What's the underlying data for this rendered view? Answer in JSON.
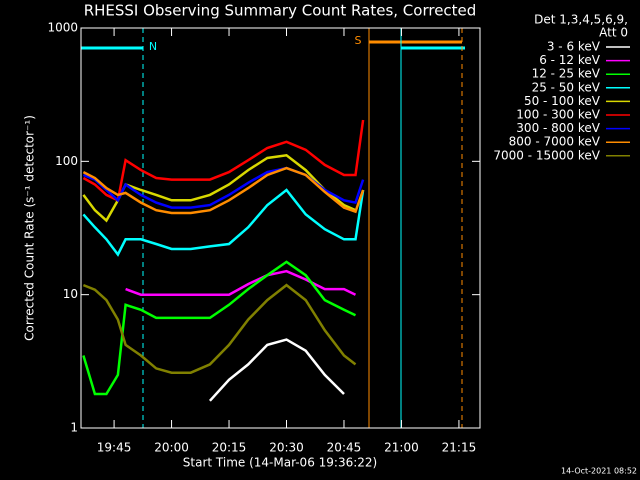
{
  "chart_data": {
    "type": "line",
    "title": "RHESSI Observing Summary Count Rates, Corrected",
    "x_label": "Start Time (14-Mar-06 19:36:22)",
    "y_label": "Corrected Count Rate (s⁻¹ detector⁻¹)",
    "footer": "14-Oct-2021 08:52",
    "legend_header": [
      "Det 1,3,4,5,6,9,",
      "Att 0"
    ],
    "annotations": [
      "N",
      "S"
    ],
    "y_scale": "log",
    "xlim": [
      "19:36:22",
      "21:20:30"
    ],
    "xticks": [
      "19:45",
      "20:00",
      "20:15",
      "20:30",
      "20:45",
      "21:00",
      "21:15"
    ],
    "ylim": [
      1,
      1000
    ],
    "yticks": [
      1,
      10,
      100,
      1000
    ],
    "x": [
      "19:37",
      "19:40",
      "19:43",
      "19:46",
      "19:48",
      "19:52",
      "19:56",
      "20:00",
      "20:05",
      "20:10",
      "20:15",
      "20:20",
      "20:25",
      "20:30",
      "20:35",
      "20:40",
      "20:45",
      "20:48",
      "20:50"
    ],
    "series": [
      {
        "name": "3 - 6 keV",
        "color": "#ffffff",
        "values": [
          null,
          null,
          null,
          null,
          null,
          null,
          null,
          null,
          null,
          1.6,
          2.3,
          3.0,
          4.2,
          4.6,
          3.8,
          2.5,
          1.8,
          null,
          null
        ]
      },
      {
        "name": "6 - 12 keV",
        "color": "#ff00ff",
        "values": [
          null,
          null,
          null,
          null,
          11,
          10,
          10,
          10,
          10,
          10,
          10,
          12,
          14,
          15,
          13,
          11,
          11,
          10,
          null
        ]
      },
      {
        "name": "12 - 25 keV",
        "color": "#00ff00",
        "values": [
          3.5,
          1.8,
          1.8,
          2.5,
          8.4,
          7.7,
          6.7,
          6.7,
          6.7,
          6.7,
          8.4,
          11,
          14,
          17.6,
          14,
          9.1,
          7.7,
          7,
          null
        ]
      },
      {
        "name": "25 - 50 keV",
        "color": "#00ffff",
        "values": [
          40,
          32,
          26,
          20,
          26,
          26,
          24,
          22,
          22,
          23,
          24,
          32,
          47,
          61,
          40,
          31,
          26,
          26,
          61
        ]
      },
      {
        "name": "50 - 100 keV",
        "color": "#d8d800",
        "values": [
          56,
          43,
          36,
          51,
          67,
          61,
          56,
          51,
          51,
          56,
          67,
          86,
          106,
          111,
          86,
          61,
          47,
          43,
          null
        ]
      },
      {
        "name": "100 - 300 keV",
        "color": "#ff0000",
        "values": [
          75,
          67,
          56,
          51,
          102,
          86,
          75,
          73,
          73,
          73,
          83,
          102,
          126,
          140,
          122,
          94,
          79,
          79,
          204
        ]
      },
      {
        "name": "300 - 800 keV",
        "color": "#0000ff",
        "values": [
          79,
          73,
          61,
          51,
          67,
          56,
          49,
          45,
          45,
          47,
          56,
          69,
          83,
          89,
          79,
          61,
          51,
          49,
          73
        ]
      },
      {
        "name": "800 - 7000 keV",
        "color": "#ff8c00",
        "values": [
          83,
          75,
          63,
          56,
          58,
          49,
          43,
          41,
          41,
          43,
          51,
          63,
          79,
          89,
          79,
          59,
          45,
          42,
          61
        ]
      },
      {
        "name": "7000 - 15000 keV",
        "color": "#808000",
        "values": [
          11.8,
          10.9,
          9.1,
          6.5,
          4.2,
          3.5,
          2.8,
          2.6,
          2.6,
          3.0,
          4.2,
          6.5,
          9.1,
          11.8,
          9.1,
          5.4,
          3.5,
          3.0,
          null
        ]
      }
    ]
  }
}
